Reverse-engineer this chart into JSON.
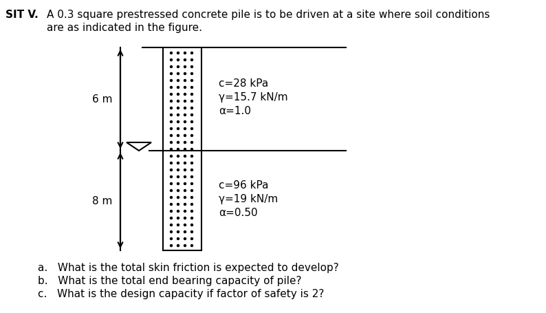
{
  "title_bold": "SIT V.",
  "title_line1": "A 0.3 square prestressed concrete pile is to be driven at a site where soil conditions",
  "title_line2": "are as indicated in the figure.",
  "layer1": {
    "label": "6 m",
    "c": "c=28 kPa",
    "gamma": "γ=15.7 kN/m",
    "alpha": "α=1.0"
  },
  "layer2": {
    "label": "8 m",
    "c": "c=96 kPa",
    "gamma": "γ=19 kN/m",
    "alpha": "α=0.50"
  },
  "questions": [
    "a.   What is the total skin friction is expected to develop?",
    "b.   What is the total end bearing capacity of pile?",
    "c.   What is the design capacity if factor of safety is 2?"
  ],
  "background_color": "#ffffff"
}
